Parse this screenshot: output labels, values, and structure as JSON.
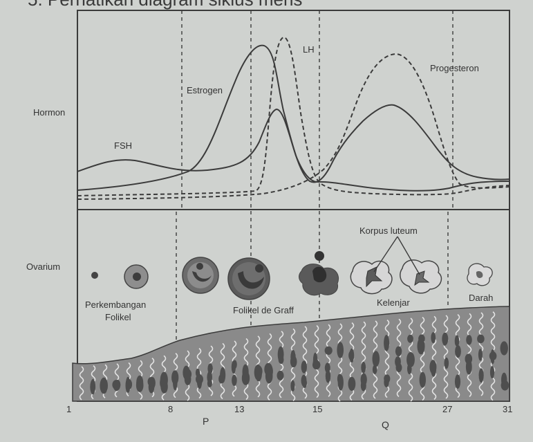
{
  "title_partial": "5. Perhatikan diagram siklus mens",
  "side_labels": {
    "hormon": "Hormon",
    "ovarium": "Ovarium"
  },
  "curves": {
    "fsh": "FSH",
    "estrogen": "Estrogen",
    "lh": "LH",
    "progesteron": "Progesteron"
  },
  "ovary_labels": {
    "perkembangan_1": "Perkembangan",
    "perkembangan_2": "Folikel",
    "folikel_de_graff": "Folikel de Graff",
    "korpus_luteum": "Korpus luteum",
    "kelenjar": "Kelenjar",
    "darah": "Darah"
  },
  "day_ticks": [
    "1",
    "8",
    "13",
    "15",
    "27",
    "31"
  ],
  "phases": {
    "p": "P",
    "q": "Q"
  },
  "colors": {
    "background": "#cfd2cf",
    "line": "#3b3b3b",
    "tissue_fill": "#8a8a8a",
    "tissue_dark": "#555555"
  }
}
